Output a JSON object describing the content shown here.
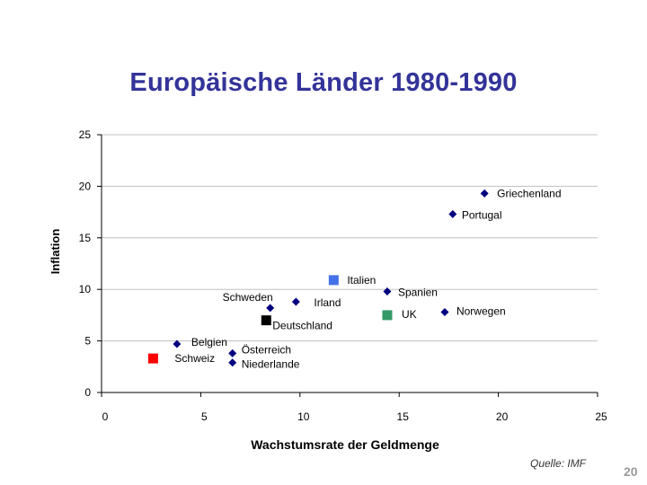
{
  "slide": {
    "title": "Europäische Länder 1980-1990",
    "source": "Quelle: IMF",
    "page_number": "20"
  },
  "chart_data": {
    "type": "scatter",
    "title": "Europäische Länder 1980-1990",
    "xlabel": "Wachstumsrate der Geldmenge",
    "ylabel": "Inflation",
    "xlim": [
      0,
      25
    ],
    "ylim": [
      0,
      25
    ],
    "xticks": [
      0,
      5,
      10,
      15,
      20,
      25
    ],
    "yticks": [
      0,
      5,
      10,
      15,
      20,
      25
    ],
    "grid": "horizontal",
    "points": [
      {
        "label": "Griechenland",
        "x": 19.3,
        "y": 19.3,
        "marker": "diamond",
        "color": "#000080"
      },
      {
        "label": "Portugal",
        "x": 17.7,
        "y": 17.3,
        "marker": "diamond",
        "color": "#000080"
      },
      {
        "label": "Italien",
        "x": 11.7,
        "y": 10.9,
        "marker": "square",
        "color": "#4472E8"
      },
      {
        "label": "Spanien",
        "x": 14.4,
        "y": 9.8,
        "marker": "diamond",
        "color": "#000080"
      },
      {
        "label": "Irland",
        "x": 9.8,
        "y": 8.8,
        "marker": "diamond",
        "color": "#000080"
      },
      {
        "label": "Schweden",
        "x": 8.5,
        "y": 8.2,
        "marker": "diamond",
        "color": "#000080"
      },
      {
        "label": "UK",
        "x": 14.4,
        "y": 7.5,
        "marker": "square",
        "color": "#339966"
      },
      {
        "label": "Norwegen",
        "x": 17.3,
        "y": 7.8,
        "marker": "diamond",
        "color": "#000080"
      },
      {
        "label": "Deutschland",
        "x": 8.3,
        "y": 7.0,
        "marker": "square",
        "color": "#000000"
      },
      {
        "label": "Belgien",
        "x": 3.8,
        "y": 4.7,
        "marker": "diamond",
        "color": "#000080"
      },
      {
        "label": "Österreich",
        "x": 6.6,
        "y": 3.8,
        "marker": "diamond",
        "color": "#000080"
      },
      {
        "label": "Schweiz",
        "x": 2.6,
        "y": 3.3,
        "marker": "square",
        "color": "#FF0000"
      },
      {
        "label": "Niederlande",
        "x": 6.6,
        "y": 2.9,
        "marker": "diamond",
        "color": "#000080"
      }
    ]
  }
}
